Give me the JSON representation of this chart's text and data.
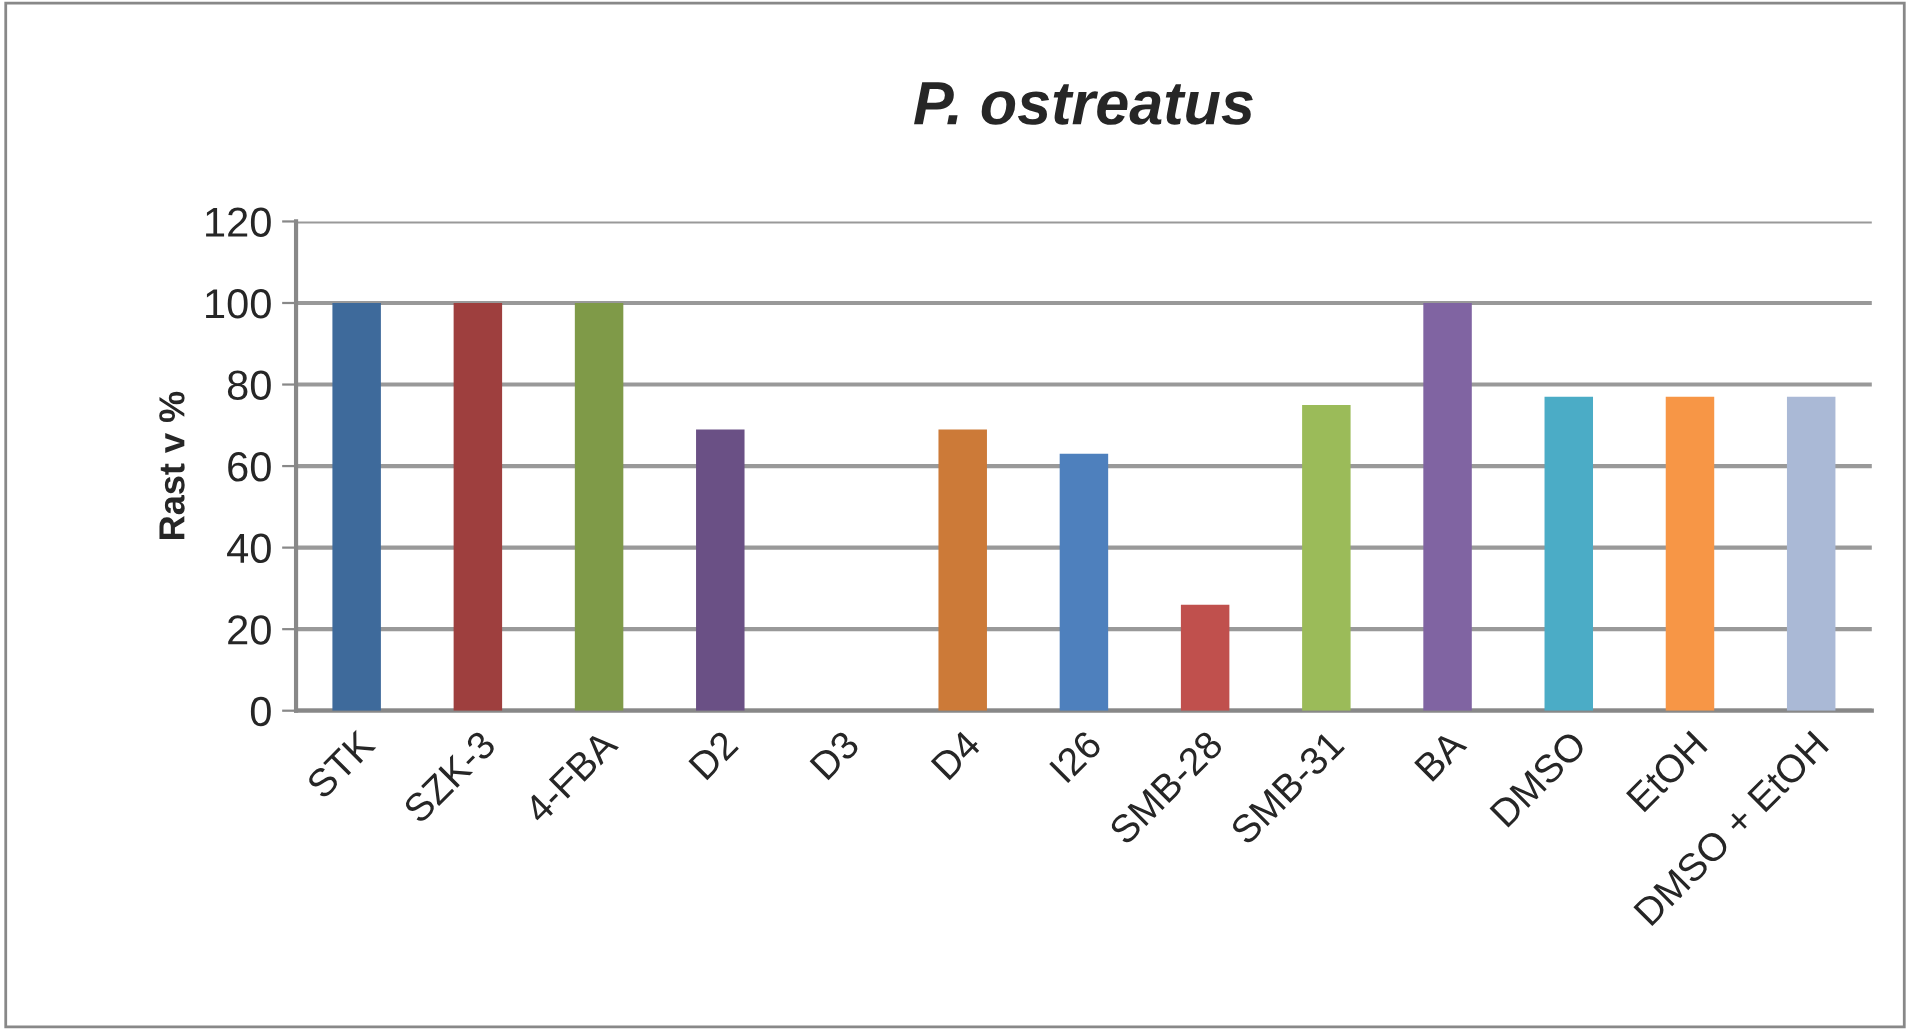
{
  "chart_data": {
    "type": "bar",
    "title": "P. ostreatus",
    "ylabel": "Rast v %",
    "categories": [
      "STK",
      "SZK-3",
      "4-FBA",
      "D2",
      "D3",
      "D4",
      "I26",
      "SMB-28",
      "SMB-31",
      "BA",
      "DMSO",
      "EtOH",
      "DMSO + EtOH"
    ],
    "values": [
      100,
      100,
      100,
      69,
      0,
      69,
      63,
      26,
      75,
      100,
      77,
      77,
      77
    ],
    "colors": [
      "#3e6a9b",
      "#9e3f3e",
      "#7f9a48",
      "#6a5085",
      null,
      "#cc7a38",
      "#4e80bd",
      "#c0504d",
      "#9bbb59",
      "#8064a2",
      "#4bacc6",
      "#f79646",
      "#aab9d6"
    ],
    "ylim": [
      0,
      120
    ],
    "yticks": [
      0,
      20,
      40,
      60,
      80,
      100,
      120
    ],
    "grid": "y",
    "legend": false
  }
}
